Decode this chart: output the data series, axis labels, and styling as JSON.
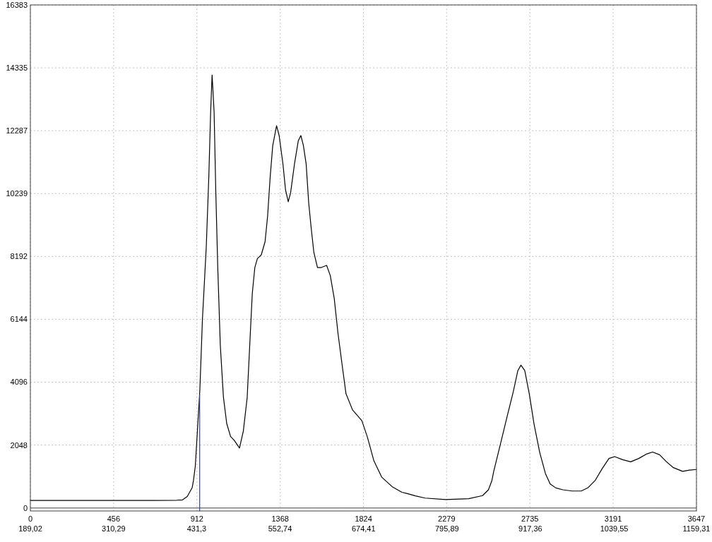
{
  "chart_data": {
    "type": "line",
    "x": [
      0,
      216,
      443,
      670,
      802,
      833,
      859,
      886,
      893,
      903,
      928,
      942,
      963,
      977,
      987,
      995,
      1006,
      1015,
      1026,
      1040,
      1057,
      1075,
      1096,
      1116,
      1145,
      1166,
      1187,
      1201,
      1215,
      1229,
      1243,
      1264,
      1285,
      1299,
      1313,
      1327,
      1348,
      1362,
      1383,
      1397,
      1412,
      1425,
      1446,
      1467,
      1481,
      1495,
      1510,
      1524,
      1538,
      1552,
      1572,
      1593,
      1622,
      1642,
      1664,
      1684,
      1706,
      1728,
      1764,
      1815,
      1845,
      1881,
      1924,
      1983,
      2034,
      2060,
      2108,
      2161,
      2274,
      2400,
      2476,
      2508,
      2527,
      2537,
      2575,
      2612,
      2644,
      2669,
      2686,
      2707,
      2732,
      2758,
      2789,
      2820,
      2846,
      2877,
      2915,
      2966,
      3016,
      3054,
      3092,
      3130,
      3168,
      3199,
      3243,
      3287,
      3331,
      3376,
      3407,
      3445,
      3483,
      3521,
      3571,
      3609,
      3647
    ],
    "series": [
      {
        "color": "#000000",
        "values": [
          240,
          240,
          240,
          240,
          250,
          260,
          370,
          660,
          890,
          1360,
          3850,
          6130,
          8490,
          10780,
          12890,
          14100,
          12890,
          10360,
          7830,
          5290,
          3610,
          2750,
          2330,
          2200,
          1950,
          2500,
          3590,
          5290,
          6980,
          7830,
          8120,
          8240,
          8670,
          9510,
          10780,
          11800,
          12450,
          12130,
          11200,
          10360,
          9970,
          10270,
          11200,
          11960,
          12130,
          11800,
          11200,
          9930,
          9090,
          8330,
          7830,
          7830,
          7900,
          7570,
          6810,
          5700,
          4700,
          3720,
          3190,
          2840,
          2310,
          1530,
          1000,
          680,
          510,
          470,
          390,
          320,
          270,
          300,
          400,
          590,
          890,
          1190,
          2110,
          3020,
          3780,
          4470,
          4650,
          4470,
          3700,
          2720,
          1800,
          1120,
          780,
          650,
          590,
          550,
          550,
          660,
          890,
          1270,
          1610,
          1670,
          1570,
          1500,
          1610,
          1760,
          1820,
          1730,
          1500,
          1310,
          1190,
          1230,
          1250
        ]
      },
      {
        "type": "line",
        "color": "#3040a0",
        "x": [
          927,
          927
        ],
        "values": [
          -100,
          3680
        ]
      }
    ],
    "xlim": [
      0,
      3647
    ],
    "xticks": [
      0,
      456,
      912,
      1368,
      1824,
      2279,
      2735,
      3191,
      3647
    ],
    "x2lim": [
      189.02,
      1159.31
    ],
    "x2ticks": [
      {
        "value": 189.02,
        "label": "189,02"
      },
      {
        "value": 310.29,
        "label": "310,29"
      },
      {
        "value": 431.3,
        "label": "431,3"
      },
      {
        "value": 552.74,
        "label": "552,74"
      },
      {
        "value": 674.41,
        "label": "674,41"
      },
      {
        "value": 795.89,
        "label": "795,89"
      },
      {
        "value": 917.36,
        "label": "917,36"
      },
      {
        "value": 1039.55,
        "label": "1039,55"
      },
      {
        "value": 1159.31,
        "label": "1159,31"
      }
    ],
    "ylim": [
      -100,
      16383
    ],
    "yticks": [
      0,
      2048,
      4096,
      6144,
      8192,
      10239,
      12287,
      14335,
      16383
    ],
    "grid": true,
    "ref_lines": [
      {
        "axis": "y",
        "value": 0,
        "color": "#808080"
      }
    ]
  }
}
